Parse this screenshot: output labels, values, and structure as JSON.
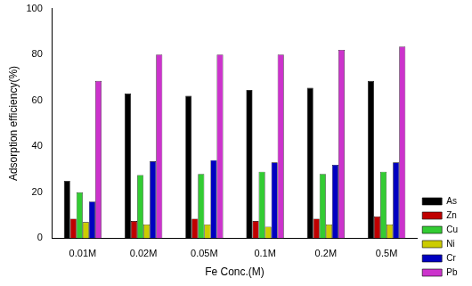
{
  "chart_data": {
    "type": "bar",
    "x_label": "Fe Conc.(M)",
    "y_label": "Adsorption efficiency(%)",
    "categories": [
      "0.01M",
      "0.02M",
      "0.05M",
      "0.1M",
      "0.2M",
      "0.5M"
    ],
    "series": [
      {
        "name": "As",
        "color": "#000000",
        "values": [
          25,
          63,
          62,
          64.5,
          65.5,
          68.5
        ]
      },
      {
        "name": "Zn",
        "color": "#c00000",
        "values": [
          8.5,
          7.5,
          8.5,
          7.5,
          8.5,
          9.5
        ]
      },
      {
        "name": "Cu",
        "color": "#33cc33",
        "values": [
          20,
          27.5,
          28,
          29,
          28,
          29
        ]
      },
      {
        "name": "Ni",
        "color": "#cccc00",
        "values": [
          7,
          6,
          6,
          5,
          6,
          6
        ]
      },
      {
        "name": "Cr",
        "color": "#0000c0",
        "values": [
          16,
          33.5,
          34,
          33,
          32,
          33
        ]
      },
      {
        "name": "Pb",
        "color": "#cc33cc",
        "values": [
          68.5,
          80,
          80,
          80,
          82,
          83.5
        ]
      }
    ],
    "ylim": [
      0,
      100
    ],
    "yticks": [
      0,
      20,
      40,
      60,
      80,
      100
    ],
    "grid": false,
    "legend": "right"
  }
}
